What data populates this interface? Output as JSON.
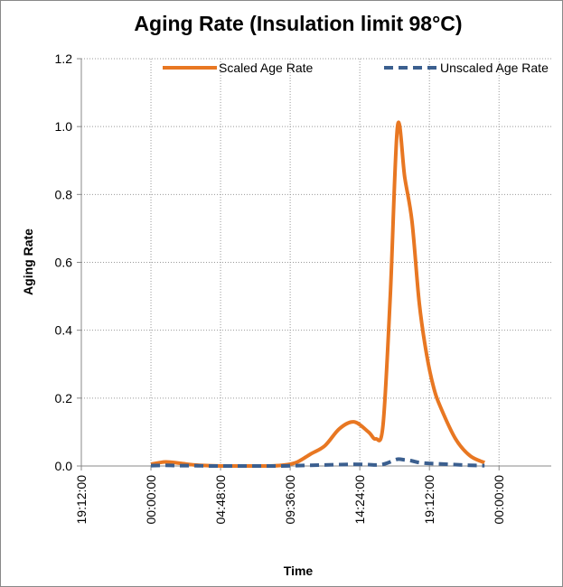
{
  "chart_data": {
    "type": "line",
    "title": "Aging Rate (Insulation limit 98°C)",
    "x_label": "Time",
    "y_label": "Aging Rate",
    "x": [
      0,
      1,
      2,
      3,
      4,
      5,
      6,
      7,
      8,
      9,
      10,
      11,
      12,
      13,
      14,
      15,
      15.5,
      16,
      16.5,
      17,
      17.5,
      18,
      18.5,
      19,
      19.5,
      20,
      21,
      22,
      23
    ],
    "series": [
      {
        "name": "Scaled Age Rate",
        "color": "#e87722",
        "dash": false,
        "values": [
          0.005,
          0.012,
          0.008,
          0.003,
          0.001,
          0,
          0,
          0,
          0,
          0.002,
          0.01,
          0.035,
          0.06,
          0.11,
          0.13,
          0.1,
          0.08,
          0.12,
          0.5,
          1.0,
          0.85,
          0.72,
          0.48,
          0.33,
          0.23,
          0.17,
          0.08,
          0.03,
          0.01
        ]
      },
      {
        "name": "Unscaled Age Rate",
        "color": "#3b5f8f",
        "dash": true,
        "values": [
          0.001,
          0.002,
          0.001,
          0.001,
          0,
          0,
          0,
          0,
          0,
          0,
          0.001,
          0.002,
          0.003,
          0.004,
          0.005,
          0.004,
          0.003,
          0.005,
          0.012,
          0.02,
          0.018,
          0.015,
          0.01,
          0.008,
          0.007,
          0.006,
          0.004,
          0.002,
          0.001
        ]
      }
    ],
    "xlim": [
      -4.8,
      27.6
    ],
    "xticks": [
      {
        "value": -4.8,
        "label": "19:12:00"
      },
      {
        "value": 0,
        "label": "00:00:00"
      },
      {
        "value": 4.8,
        "label": "04:48:00"
      },
      {
        "value": 9.6,
        "label": "09:36:00"
      },
      {
        "value": 14.4,
        "label": "14:24:00"
      },
      {
        "value": 19.2,
        "label": "19:12:00"
      },
      {
        "value": 24,
        "label": "00:00:00"
      }
    ],
    "ylim": [
      0,
      1.2
    ],
    "yticks": [
      {
        "value": 0,
        "label": "0.0"
      },
      0.2,
      0.4,
      0.6,
      0.8,
      {
        "value": 1,
        "label": "1.0"
      },
      1.2
    ],
    "grid": true,
    "legend": "top"
  }
}
